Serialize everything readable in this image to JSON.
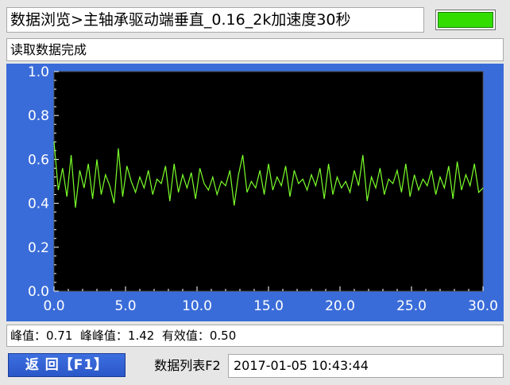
{
  "header": {
    "title": "数据浏览>主轴承驱动端垂直_0.16_2k加速度30秒",
    "status_led_color": "#33dd00"
  },
  "status": {
    "message": "读取数据完成"
  },
  "stats": {
    "text": "峰值：0.71  峰峰值：1.42  有效值：0.50"
  },
  "footer": {
    "back_label": "返 回【F1】",
    "list_label": "数据列表F2",
    "datetime": "2017-01-05 10:43:44"
  },
  "chart_data": {
    "type": "line",
    "xlim": [
      0,
      30
    ],
    "ylim": [
      0,
      1
    ],
    "x_ticks": [
      "0.0",
      "5.0",
      "10.0",
      "15.0",
      "20.0",
      "25.0",
      "30.0"
    ],
    "y_ticks": [
      "0.0",
      "0.2",
      "0.4",
      "0.6",
      "0.8",
      "1.0"
    ],
    "grid": false,
    "series": [
      {
        "color": "#7bff2a",
        "x": [
          0.0,
          0.3,
          0.6,
          0.9,
          1.2,
          1.5,
          1.8,
          2.1,
          2.4,
          2.7,
          3.0,
          3.3,
          3.6,
          3.9,
          4.2,
          4.5,
          4.8,
          5.1,
          5.4,
          5.7,
          6.0,
          6.3,
          6.6,
          6.9,
          7.2,
          7.5,
          7.8,
          8.1,
          8.4,
          8.7,
          9.0,
          9.3,
          9.6,
          9.9,
          10.2,
          10.5,
          10.8,
          11.1,
          11.4,
          11.7,
          12.0,
          12.3,
          12.6,
          12.9,
          13.2,
          13.5,
          13.8,
          14.1,
          14.4,
          14.7,
          15.0,
          15.3,
          15.6,
          15.9,
          16.2,
          16.5,
          16.8,
          17.1,
          17.4,
          17.7,
          18.0,
          18.3,
          18.6,
          18.9,
          19.2,
          19.5,
          19.8,
          20.1,
          20.4,
          20.7,
          21.0,
          21.3,
          21.6,
          21.9,
          22.2,
          22.5,
          22.8,
          23.1,
          23.4,
          23.7,
          24.0,
          24.3,
          24.6,
          24.9,
          25.2,
          25.5,
          25.8,
          26.1,
          26.4,
          26.7,
          27.0,
          27.3,
          27.6,
          27.9,
          28.2,
          28.5,
          28.8,
          29.1,
          29.4,
          29.7,
          30.0
        ],
        "y": [
          0.68,
          0.46,
          0.56,
          0.43,
          0.62,
          0.38,
          0.55,
          0.47,
          0.58,
          0.42,
          0.6,
          0.44,
          0.53,
          0.48,
          0.4,
          0.65,
          0.43,
          0.57,
          0.5,
          0.45,
          0.52,
          0.47,
          0.55,
          0.44,
          0.51,
          0.49,
          0.57,
          0.41,
          0.58,
          0.45,
          0.53,
          0.47,
          0.54,
          0.42,
          0.56,
          0.49,
          0.46,
          0.52,
          0.44,
          0.5,
          0.48,
          0.55,
          0.39,
          0.53,
          0.62,
          0.45,
          0.5,
          0.47,
          0.55,
          0.44,
          0.58,
          0.46,
          0.52,
          0.48,
          0.57,
          0.43,
          0.55,
          0.49,
          0.51,
          0.46,
          0.53,
          0.48,
          0.56,
          0.42,
          0.58,
          0.44,
          0.52,
          0.47,
          0.5,
          0.45,
          0.55,
          0.48,
          0.62,
          0.41,
          0.52,
          0.47,
          0.56,
          0.44,
          0.51,
          0.49,
          0.55,
          0.45,
          0.58,
          0.43,
          0.53,
          0.46,
          0.51,
          0.48,
          0.55,
          0.44,
          0.52,
          0.47,
          0.57,
          0.42,
          0.59,
          0.46,
          0.53,
          0.48,
          0.58,
          0.45,
          0.47
        ]
      }
    ]
  }
}
